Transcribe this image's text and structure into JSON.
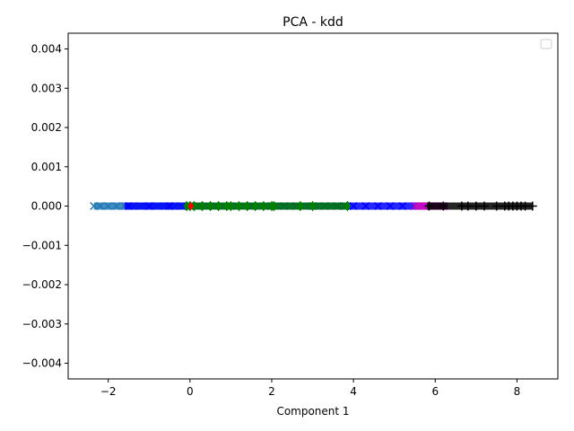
{
  "chart_data": {
    "type": "scatter",
    "title": "PCA - kdd",
    "xlabel": "Component 1",
    "ylabel": "",
    "xlim": [
      -2.98,
      9.0
    ],
    "ylim": [
      -0.0044,
      0.0044
    ],
    "x_ticks": [
      -2,
      0,
      2,
      4,
      6,
      8
    ],
    "x_tick_labels": [
      "−2",
      "0",
      "2",
      "4",
      "6",
      "8"
    ],
    "y_ticks": [
      0.004,
      0.003,
      0.002,
      0.001,
      0.0,
      -0.001,
      -0.002,
      -0.003,
      -0.004
    ],
    "y_tick_labels": [
      "0.004",
      "0.003",
      "0.002",
      "0.001",
      "0.000",
      "−0.001",
      "−0.002",
      "−0.003",
      "−0.004"
    ],
    "grid": false,
    "legend": {
      "placement": "top-right",
      "entries": []
    },
    "series": [
      {
        "marker": "x",
        "color": "#1f77b4",
        "x_range": [
          -2.35,
          0.5
        ],
        "points": [
          -2.35,
          -2.2,
          -2.0,
          -1.8,
          -1.6,
          -1.4,
          -1.2,
          -1.0,
          -0.8,
          -0.6,
          -0.4,
          -0.2,
          0.0,
          0.2,
          0.4
        ],
        "y": 0.0
      },
      {
        "marker": "x",
        "color": "#0000ff",
        "x_range": [
          -1.6,
          5.5
        ],
        "points": [
          -1.5,
          -1.0,
          -0.5,
          0.2,
          0.6,
          1.0,
          1.5,
          2.0,
          2.3,
          2.6,
          3.0,
          3.3,
          3.6,
          3.8,
          4.0,
          4.3,
          4.6,
          4.9,
          5.2,
          5.5
        ],
        "y": 0.0
      },
      {
        "marker": "diamond",
        "color": "#008000",
        "x_range": [
          -0.1,
          3.9
        ],
        "points": [
          -0.08,
          0.0,
          0.1,
          0.3,
          0.5,
          0.7,
          0.9,
          1.0,
          1.2,
          1.4,
          1.6,
          1.8,
          2.0,
          2.05,
          2.7,
          3.0,
          3.85
        ],
        "y": 0.0
      },
      {
        "marker": "circle",
        "color": "#ff0000",
        "x_range": [
          0.0,
          0.05
        ],
        "points": [
          0.02
        ],
        "y": 0.0
      },
      {
        "marker": "x",
        "color": "#bf00bf",
        "x_range": [
          5.5,
          6.3
        ],
        "points": [
          5.5,
          5.6,
          5.7,
          5.8,
          5.9,
          6.0,
          6.1,
          6.2
        ],
        "y": 0.0
      },
      {
        "marker": "plus",
        "color": "#000000",
        "x_range": [
          5.8,
          8.4
        ],
        "points": [
          5.85,
          6.2,
          6.65,
          6.8,
          7.0,
          7.2,
          7.5,
          7.7,
          7.8,
          7.9,
          8.0,
          8.1,
          8.2,
          8.38
        ],
        "y": 0.0
      }
    ]
  }
}
